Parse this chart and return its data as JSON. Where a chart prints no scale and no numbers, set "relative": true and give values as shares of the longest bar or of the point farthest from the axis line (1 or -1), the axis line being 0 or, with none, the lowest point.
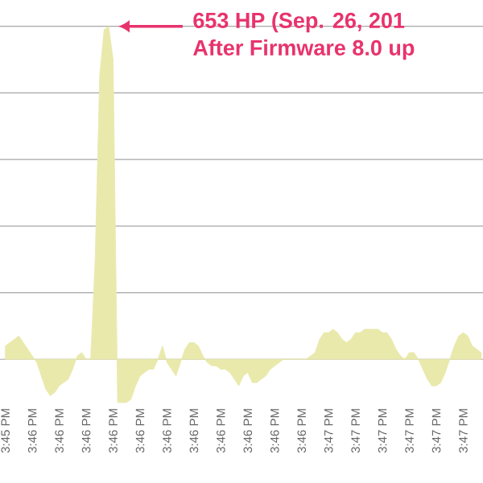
{
  "chart_data": {
    "type": "area",
    "relative": true,
    "grid": "y",
    "categories": [
      "3:45 PM",
      null,
      null,
      null,
      null,
      null,
      "3:46 PM",
      null,
      null,
      null,
      null,
      null,
      "3:46 PM",
      null,
      null,
      null,
      null,
      null,
      "3:46 PM",
      null,
      null,
      null,
      null,
      null,
      "3:46 PM",
      null,
      null,
      null,
      null,
      null,
      "3:46 PM",
      null,
      null,
      null,
      null,
      null,
      "3:46 PM",
      null,
      null,
      null,
      null,
      null,
      "3:46 PM",
      null,
      null,
      null,
      null,
      null,
      "3:46 PM",
      null,
      null,
      null,
      null,
      null,
      "3:46 PM",
      null,
      null,
      null,
      null,
      null,
      "3:46 PM",
      null,
      null,
      null,
      null,
      null,
      "3:46 PM",
      null,
      null,
      null,
      null,
      null,
      "3:47 PM",
      null,
      null,
      null,
      null,
      null,
      "3:47 PM",
      null,
      null,
      null,
      null,
      null,
      "3:47 PM",
      null,
      null,
      null,
      null,
      null,
      "3:47 PM",
      null,
      null,
      null,
      null,
      null,
      "3:47 PM",
      null,
      null,
      null,
      null,
      null,
      "3:47 PM",
      null,
      null,
      null,
      null
    ],
    "series": [
      {
        "color": "#e9e9ac",
        "values": [
          0.04,
          0.05,
          0.06,
          0.07,
          0.05,
          0.03,
          0.01,
          -0.01,
          -0.05,
          -0.09,
          -0.11,
          -0.1,
          -0.08,
          -0.07,
          -0.06,
          -0.03,
          0.01,
          0.02,
          0,
          0,
          0.3,
          0.85,
          0.99,
          1,
          0.9,
          -0.13,
          -0.13,
          -0.13,
          -0.12,
          -0.08,
          -0.05,
          -0.04,
          -0.03,
          -0.03,
          0,
          0.04,
          -0.01,
          -0.03,
          -0.05,
          -0.01,
          0.03,
          0.05,
          0.05,
          0.04,
          0.01,
          -0.01,
          -0.02,
          -0.02,
          -0.03,
          -0.03,
          -0.04,
          -0.06,
          -0.08,
          -0.05,
          -0.04,
          -0.07,
          -0.07,
          -0.06,
          -0.05,
          -0.03,
          -0.02,
          -0.01,
          0,
          0,
          0,
          0,
          0,
          0,
          0.01,
          0.02,
          0.06,
          0.08,
          0.08,
          0.09,
          0.08,
          0.06,
          0.05,
          0.06,
          0.08,
          0.08,
          0.09,
          0.09,
          0.09,
          0.09,
          0.08,
          0.08,
          0.06,
          0.03,
          0.01,
          0,
          0.02,
          0.02,
          0,
          -0.03,
          -0.06,
          -0.08,
          -0.08,
          -0.07,
          -0.04,
          0,
          0.04,
          0.07,
          0.08,
          0.07,
          0.04,
          0.03,
          0.02
        ]
      }
    ],
    "annotations": [
      "653 HP (Sep. 26, 201",
      "After Firmware 8.0 up"
    ]
  }
}
